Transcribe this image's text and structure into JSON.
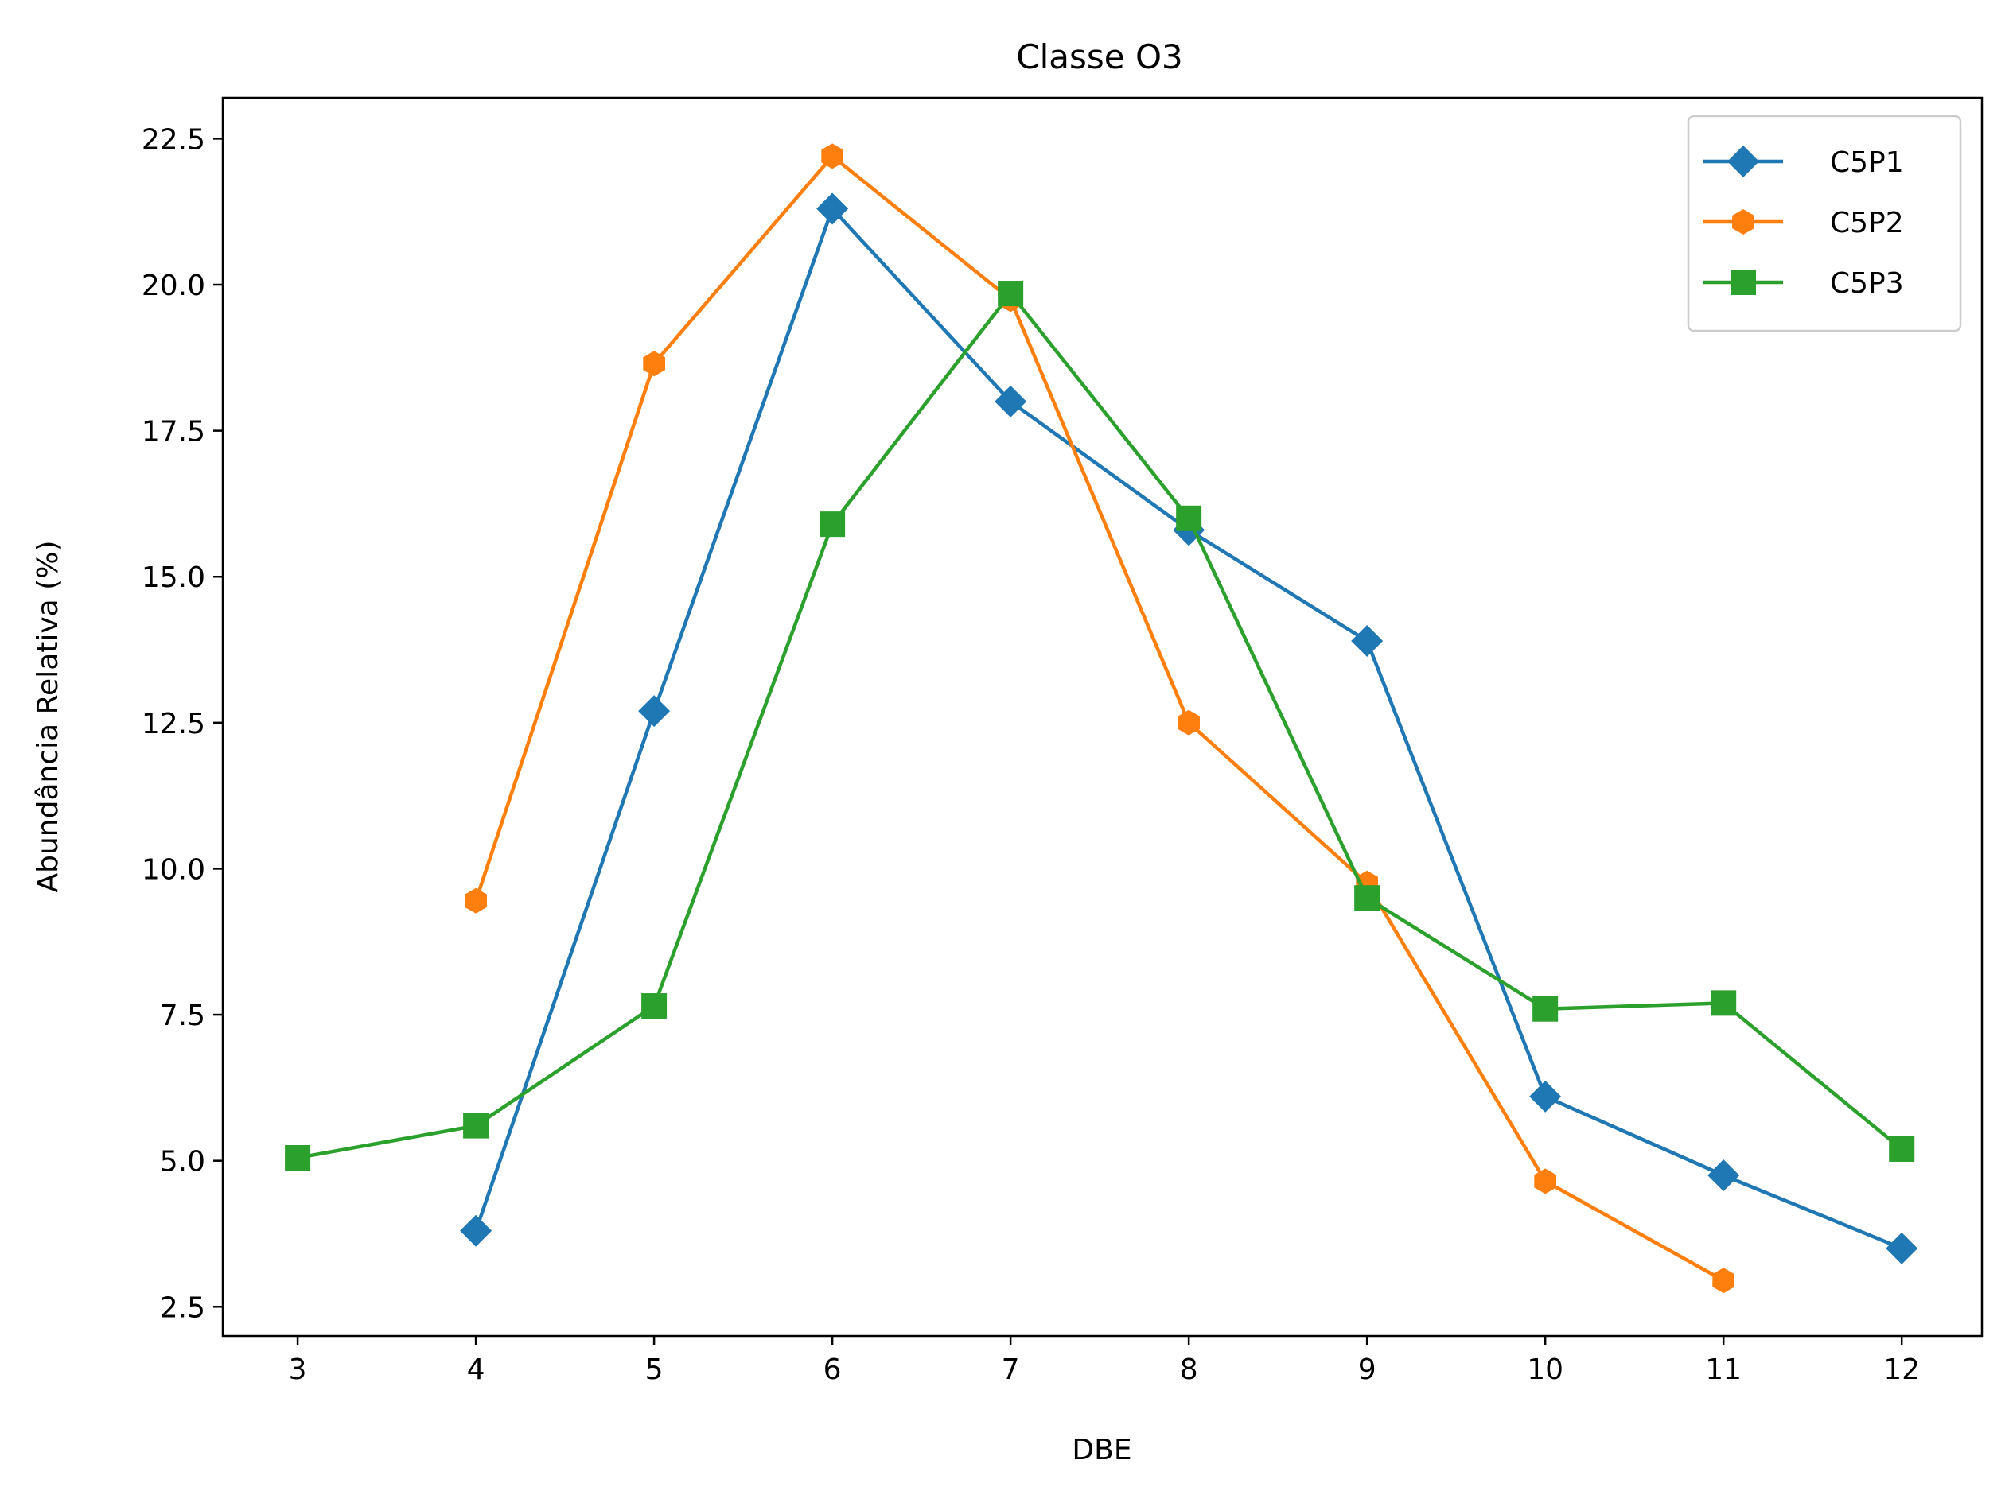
{
  "chart_data": {
    "type": "line",
    "title": "Classe O3",
    "xlabel": "DBE",
    "ylabel": "Abundância Relativa (%)",
    "xlim": [
      2.58,
      12.45
    ],
    "ylim": [
      2.0,
      23.2
    ],
    "x_ticks": [
      3,
      4,
      5,
      6,
      7,
      8,
      9,
      10,
      11,
      12
    ],
    "y_ticks": [
      2.5,
      5.0,
      7.5,
      10.0,
      12.5,
      15.0,
      17.5,
      20.0,
      22.5
    ],
    "y_tick_labels": [
      "2.5",
      "5.0",
      "7.5",
      "10.0",
      "12.5",
      "15.0",
      "17.5",
      "20.0",
      "22.5"
    ],
    "grid": false,
    "legend_position": "top-right",
    "series": [
      {
        "name": "C5P1",
        "color": "#1f77b4",
        "marker": "diamond",
        "x": [
          4,
          5,
          6,
          7,
          8,
          9,
          10,
          11,
          12
        ],
        "y": [
          3.8,
          12.7,
          21.3,
          18.0,
          15.8,
          13.9,
          6.1,
          4.75,
          3.5
        ]
      },
      {
        "name": "C5P2",
        "color": "#ff7f0e",
        "marker": "hexagon",
        "x": [
          4,
          5,
          6,
          7,
          8,
          9,
          10,
          11
        ],
        "y": [
          9.45,
          18.65,
          22.2,
          19.75,
          12.5,
          9.75,
          4.65,
          2.95
        ]
      },
      {
        "name": "C5P3",
        "color": "#2ca02c",
        "marker": "square",
        "x": [
          3,
          4,
          5,
          6,
          7,
          8,
          9,
          10,
          11,
          12
        ],
        "y": [
          5.05,
          5.6,
          7.65,
          15.9,
          19.85,
          16.0,
          9.5,
          7.6,
          7.7,
          5.2
        ]
      }
    ]
  }
}
